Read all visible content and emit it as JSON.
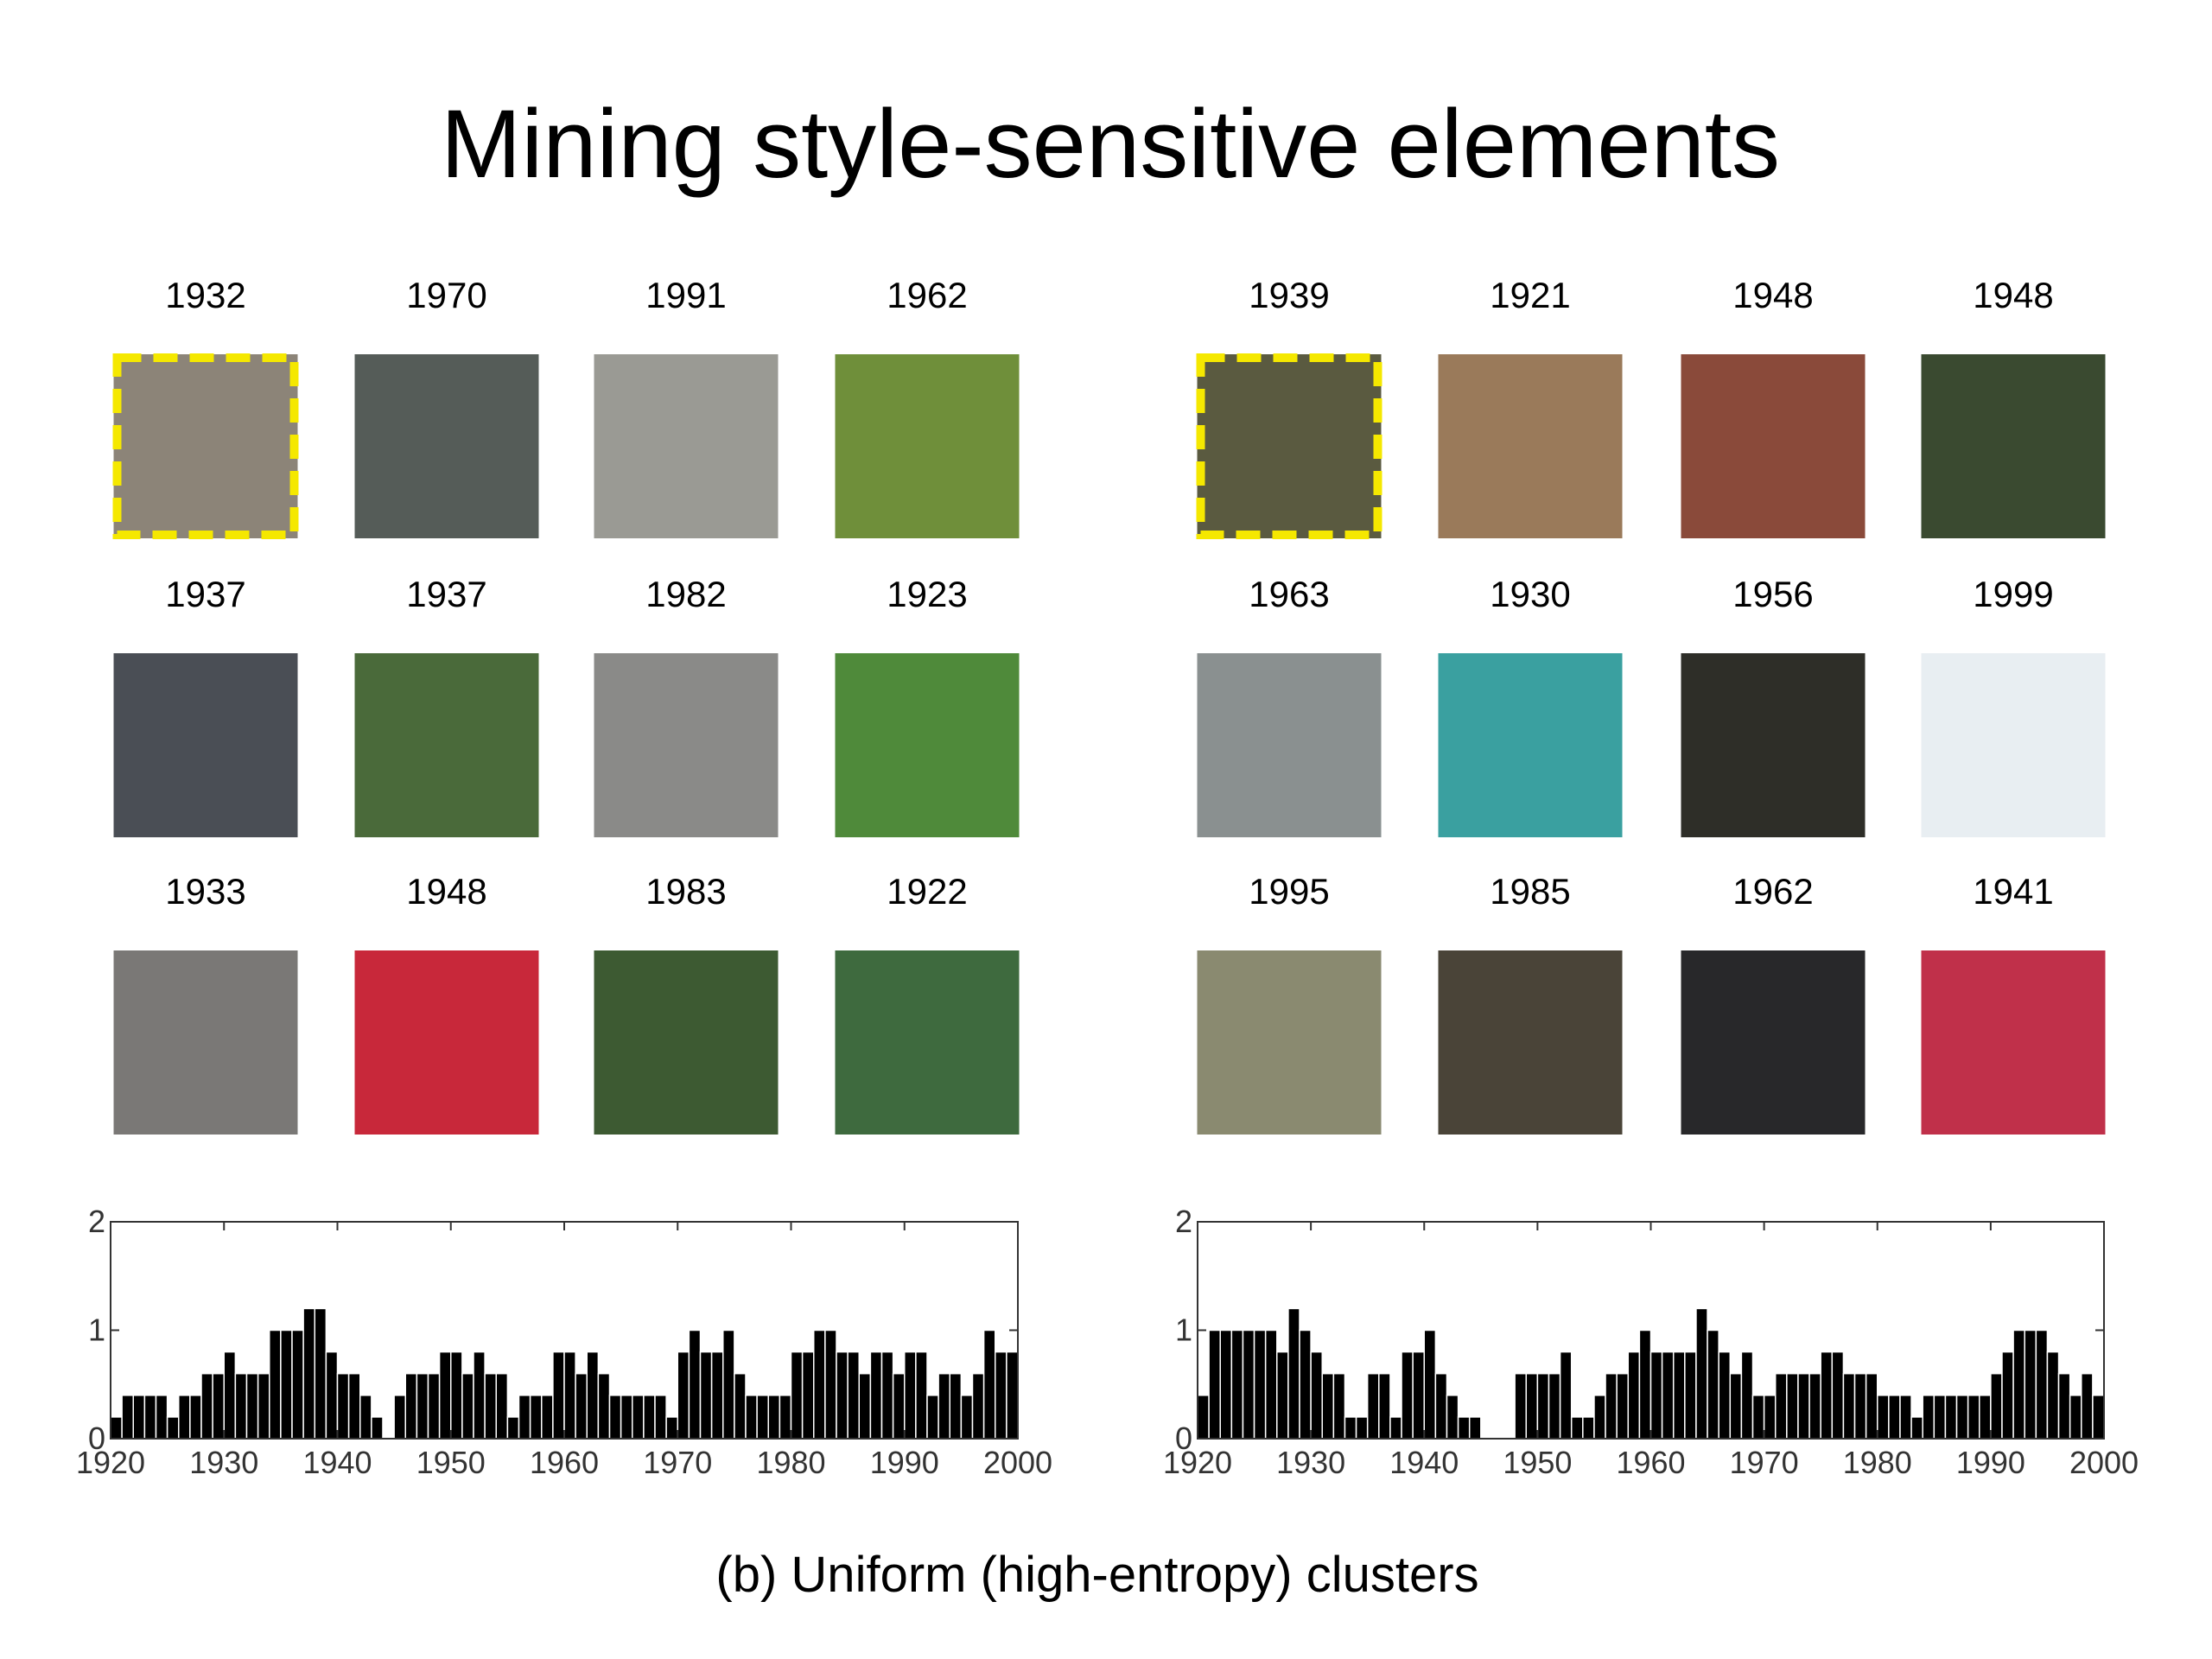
{
  "title": "Mining style-sensitive elements",
  "panels": [
    {
      "years": [
        "1932",
        "1970",
        "1991",
        "1962",
        "1937",
        "1937",
        "1982",
        "1923",
        "1933",
        "1948",
        "1983",
        "1922"
      ]
    },
    {
      "years": [
        "1939",
        "1921",
        "1948",
        "1948",
        "1963",
        "1930",
        "1956",
        "1999",
        "1995",
        "1985",
        "1962",
        "1941"
      ]
    }
  ],
  "chart_data": [
    {
      "type": "bar",
      "color": "#000000",
      "x": [
        1920,
        1921,
        1922,
        1923,
        1924,
        1925,
        1926,
        1927,
        1928,
        1929,
        1930,
        1931,
        1932,
        1933,
        1934,
        1935,
        1936,
        1937,
        1938,
        1939,
        1940,
        1941,
        1942,
        1943,
        1944,
        1945,
        1946,
        1947,
        1948,
        1949,
        1950,
        1951,
        1952,
        1953,
        1954,
        1955,
        1956,
        1957,
        1958,
        1959,
        1960,
        1961,
        1962,
        1963,
        1964,
        1965,
        1966,
        1967,
        1968,
        1969,
        1970,
        1971,
        1972,
        1973,
        1974,
        1975,
        1976,
        1977,
        1978,
        1979,
        1980,
        1981,
        1982,
        1983,
        1984,
        1985,
        1986,
        1987,
        1988,
        1989,
        1990,
        1991,
        1992,
        1993,
        1994,
        1995,
        1996,
        1997,
        1998,
        1999
      ],
      "values": [
        0.2,
        0.4,
        0.4,
        0.4,
        0.4,
        0.2,
        0.4,
        0.4,
        0.6,
        0.6,
        0.8,
        0.6,
        0.6,
        0.6,
        1.0,
        1.0,
        1.0,
        1.2,
        1.2,
        0.8,
        0.6,
        0.6,
        0.4,
        0.2,
        0,
        0.4,
        0.6,
        0.6,
        0.6,
        0.8,
        0.8,
        0.6,
        0.8,
        0.6,
        0.6,
        0.2,
        0.4,
        0.4,
        0.4,
        0.8,
        0.8,
        0.6,
        0.8,
        0.6,
        0.4,
        0.4,
        0.4,
        0.4,
        0.4,
        0.2,
        0.8,
        1.0,
        0.8,
        0.8,
        1.0,
        0.6,
        0.4,
        0.4,
        0.4,
        0.4,
        0.8,
        0.8,
        1.0,
        1.0,
        0.8,
        0.8,
        0.6,
        0.8,
        0.8,
        0.6,
        0.8,
        0.8,
        0.4,
        0.6,
        0.6,
        0.4,
        0.6,
        1.0,
        0.8,
        0.8
      ],
      "xlim": [
        1920,
        2000
      ],
      "ylim": [
        0,
        2
      ],
      "xticks": [
        1920,
        1930,
        1940,
        1950,
        1960,
        1970,
        1980,
        1990,
        2000
      ],
      "yticks": [
        0,
        1,
        2
      ]
    },
    {
      "type": "bar",
      "color": "#000000",
      "x": [
        1920,
        1921,
        1922,
        1923,
        1924,
        1925,
        1926,
        1927,
        1928,
        1929,
        1930,
        1931,
        1932,
        1933,
        1934,
        1935,
        1936,
        1937,
        1938,
        1939,
        1940,
        1941,
        1942,
        1943,
        1944,
        1945,
        1946,
        1947,
        1948,
        1949,
        1950,
        1951,
        1952,
        1953,
        1954,
        1955,
        1956,
        1957,
        1958,
        1959,
        1960,
        1961,
        1962,
        1963,
        1964,
        1965,
        1966,
        1967,
        1968,
        1969,
        1970,
        1971,
        1972,
        1973,
        1974,
        1975,
        1976,
        1977,
        1978,
        1979,
        1980,
        1981,
        1982,
        1983,
        1984,
        1985,
        1986,
        1987,
        1988,
        1989,
        1990,
        1991,
        1992,
        1993,
        1994,
        1995,
        1996,
        1997,
        1998,
        1999
      ],
      "values": [
        0.4,
        1.0,
        1.0,
        1.0,
        1.0,
        1.0,
        1.0,
        0.8,
        1.2,
        1.0,
        0.8,
        0.6,
        0.6,
        0.2,
        0.2,
        0.6,
        0.6,
        0.2,
        0.8,
        0.8,
        1.0,
        0.6,
        0.4,
        0.2,
        0.2,
        0,
        0,
        0,
        0.6,
        0.6,
        0.6,
        0.6,
        0.8,
        0.2,
        0.2,
        0.4,
        0.6,
        0.6,
        0.8,
        1.0,
        0.8,
        0.8,
        0.8,
        0.8,
        1.2,
        1.0,
        0.8,
        0.6,
        0.8,
        0.4,
        0.4,
        0.6,
        0.6,
        0.6,
        0.6,
        0.8,
        0.8,
        0.6,
        0.6,
        0.6,
        0.4,
        0.4,
        0.4,
        0.2,
        0.4,
        0.4,
        0.4,
        0.4,
        0.4,
        0.4,
        0.6,
        0.8,
        1.0,
        1.0,
        1.0,
        0.8,
        0.6,
        0.4,
        0.6,
        0.4
      ],
      "xlim": [
        1920,
        2000
      ],
      "ylim": [
        0,
        2
      ],
      "xticks": [
        1920,
        1930,
        1940,
        1950,
        1960,
        1970,
        1980,
        1990,
        2000
      ],
      "yticks": [
        0,
        1,
        2
      ]
    }
  ],
  "caption": "(b) Uniform (high-entropy) clusters"
}
